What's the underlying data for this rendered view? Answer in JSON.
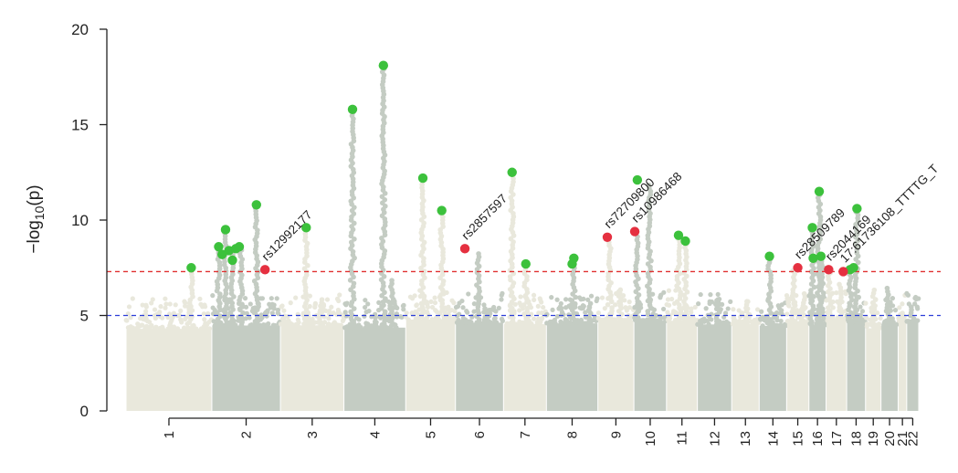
{
  "chart_data": {
    "type": "scatter",
    "subtype": "manhattan",
    "ylabel_prefix": "−log",
    "ylabel_sub": "10",
    "ylabel_suffix": "(p)",
    "ylim": [
      0,
      20
    ],
    "yticks": [
      0,
      5,
      10,
      15,
      20
    ],
    "grid": false,
    "thresholds": [
      {
        "value": 7.3,
        "color": "#e03030",
        "style": "dashed"
      },
      {
        "value": 5.0,
        "color": "#2c3ed8",
        "style": "dashed"
      }
    ],
    "colors": {
      "odd": "#e9e8dc",
      "even": "#c4ccc3",
      "lead": "#3cc13c",
      "highlight": "#e53040"
    },
    "chromosomes": [
      {
        "label": "1",
        "start": 0,
        "end": 50,
        "peaks": [
          [
            38,
            7.5
          ]
        ]
      },
      {
        "label": "2",
        "start": 50,
        "end": 90,
        "peaks": [
          [
            54,
            8.6
          ],
          [
            58,
            9.5
          ],
          [
            62,
            8.5
          ],
          [
            67,
            8.6
          ],
          [
            76,
            10.8
          ]
        ]
      },
      {
        "label": "3",
        "start": 90,
        "end": 127,
        "peaks": [
          [
            105,
            9.6
          ],
          [
            114,
            6.0
          ]
        ]
      },
      {
        "label": "4",
        "start": 127,
        "end": 163,
        "peaks": [
          [
            132,
            15.8
          ],
          [
            150,
            18.1
          ],
          [
            155,
            7.0
          ]
        ]
      },
      {
        "label": "5",
        "start": 163,
        "end": 192,
        "peaks": [
          [
            173,
            12.2
          ],
          [
            184,
            10.5
          ]
        ]
      },
      {
        "label": "6",
        "start": 192,
        "end": 220,
        "peaks": [
          [
            205,
            8.4
          ],
          [
            210,
            5.5
          ]
        ]
      },
      {
        "label": "7",
        "start": 220,
        "end": 245,
        "peaks": [
          [
            225,
            12.5
          ],
          [
            233,
            7.7
          ]
        ]
      },
      {
        "label": "8",
        "start": 245,
        "end": 275,
        "peaks": [
          [
            261,
            8.0
          ],
          [
            270,
            5.8
          ]
        ]
      },
      {
        "label": "9",
        "start": 275,
        "end": 296,
        "peaks": [
          [
            282,
            9.0
          ],
          [
            288,
            6.5
          ]
        ]
      },
      {
        "label": "10",
        "start": 296,
        "end": 315,
        "peaks": [
          [
            298,
            9.3
          ],
          [
            305,
            12.0
          ]
        ]
      },
      {
        "label": "11",
        "start": 315,
        "end": 333,
        "peaks": [
          [
            322,
            9.2
          ],
          [
            326,
            8.9
          ]
        ]
      },
      {
        "label": "12",
        "start": 333,
        "end": 353,
        "peaks": [
          [
            345,
            6.0
          ]
        ]
      },
      {
        "label": "13",
        "start": 353,
        "end": 369,
        "peaks": [
          [
            362,
            5.9
          ]
        ]
      },
      {
        "label": "14",
        "start": 369,
        "end": 385,
        "peaks": [
          [
            375,
            8.1
          ]
        ]
      },
      {
        "label": "15",
        "start": 385,
        "end": 398,
        "peaks": [
          [
            389,
            7.5
          ],
          [
            395,
            6.3
          ]
        ]
      },
      {
        "label": "16",
        "start": 398,
        "end": 408,
        "peaks": [
          [
            400,
            9.6
          ],
          [
            404,
            11.5
          ],
          [
            406,
            8.0
          ]
        ]
      },
      {
        "label": "17",
        "start": 408,
        "end": 420,
        "peaks": [
          [
            410,
            7.4
          ],
          [
            416,
            6.8
          ]
        ]
      },
      {
        "label": "18",
        "start": 420,
        "end": 431,
        "peaks": [
          [
            422,
            7.5
          ],
          [
            426,
            10.6
          ]
        ]
      },
      {
        "label": "19",
        "start": 431,
        "end": 440,
        "peaks": [
          [
            436,
            6.5
          ]
        ]
      },
      {
        "label": "20",
        "start": 440,
        "end": 450,
        "peaks": [
          [
            444,
            6.6
          ]
        ]
      },
      {
        "label": "21",
        "start": 450,
        "end": 455,
        "peaks": [
          [
            452,
            5.2
          ]
        ]
      },
      {
        "label": "22",
        "start": 455,
        "end": 462,
        "peaks": [
          [
            458,
            5.6
          ]
        ]
      }
    ],
    "lead_snps": [
      {
        "x": 38,
        "y": 7.5
      },
      {
        "x": 54,
        "y": 8.6
      },
      {
        "x": 56,
        "y": 8.2
      },
      {
        "x": 58,
        "y": 9.5
      },
      {
        "x": 60,
        "y": 8.4
      },
      {
        "x": 62,
        "y": 7.9
      },
      {
        "x": 64,
        "y": 8.5
      },
      {
        "x": 66,
        "y": 8.6
      },
      {
        "x": 76,
        "y": 10.8
      },
      {
        "x": 105,
        "y": 9.6
      },
      {
        "x": 132,
        "y": 15.8
      },
      {
        "x": 150,
        "y": 18.1
      },
      {
        "x": 173,
        "y": 12.2
      },
      {
        "x": 184,
        "y": 10.5
      },
      {
        "x": 225,
        "y": 12.5
      },
      {
        "x": 233,
        "y": 7.7
      },
      {
        "x": 260,
        "y": 7.7
      },
      {
        "x": 261,
        "y": 8.0
      },
      {
        "x": 298,
        "y": 12.1
      },
      {
        "x": 322,
        "y": 9.2
      },
      {
        "x": 326,
        "y": 8.9
      },
      {
        "x": 375,
        "y": 8.1
      },
      {
        "x": 400,
        "y": 9.6
      },
      {
        "x": 400.5,
        "y": 8.0
      },
      {
        "x": 404,
        "y": 11.5
      },
      {
        "x": 405,
        "y": 8.1
      },
      {
        "x": 422,
        "y": 7.4
      },
      {
        "x": 424,
        "y": 7.5
      },
      {
        "x": 426,
        "y": 10.6
      }
    ],
    "highlight_snps": [
      {
        "x": 81.0,
        "y": 7.4,
        "label": "rs12992177"
      },
      {
        "x": 197.5,
        "y": 8.5,
        "label": "rs2857597"
      },
      {
        "x": 280.5,
        "y": 9.1,
        "label": "rs72709800"
      },
      {
        "x": 296.5,
        "y": 9.4,
        "label": "rs10986468"
      },
      {
        "x": 391.5,
        "y": 7.5,
        "label": "rs28509789"
      },
      {
        "x": 409.5,
        "y": 7.4,
        "label": "rs2044169"
      },
      {
        "x": 418.0,
        "y": 7.3,
        "label": "17:61736108_TTTTG_T"
      }
    ]
  }
}
